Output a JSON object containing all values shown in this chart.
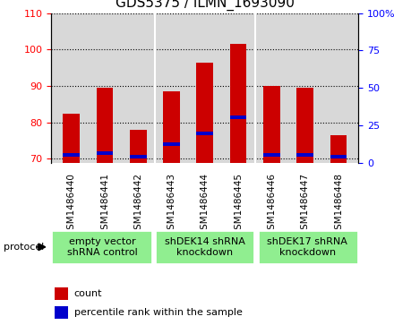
{
  "title": "GDS5375 / ILMN_1693090",
  "samples": [
    "GSM1486440",
    "GSM1486441",
    "GSM1486442",
    "GSM1486443",
    "GSM1486444",
    "GSM1486445",
    "GSM1486446",
    "GSM1486447",
    "GSM1486448"
  ],
  "count_values": [
    82.5,
    89.5,
    78.0,
    88.5,
    96.5,
    101.5,
    90.0,
    89.5,
    76.5
  ],
  "percentile_values": [
    71.0,
    71.5,
    70.5,
    74.0,
    77.0,
    81.5,
    71.0,
    71.0,
    70.5
  ],
  "ylim_left": [
    69,
    110
  ],
  "ylim_right": [
    0,
    100
  ],
  "yticks_left": [
    70,
    80,
    90,
    100,
    110
  ],
  "yticks_right": [
    0,
    25,
    50,
    75,
    100
  ],
  "bar_color": "#cc0000",
  "percentile_color": "#0000cc",
  "grid_color": "#000000",
  "plot_bg_color": "#d8d8d8",
  "sample_bg_color": "#d8d8d8",
  "protocol_color": "#90ee90",
  "protocol_groups": [
    {
      "label": "empty vector\nshRNA control",
      "start": 0,
      "end": 3
    },
    {
      "label": "shDEK14 shRNA\nknockdown",
      "start": 3,
      "end": 6
    },
    {
      "label": "shDEK17 shRNA\nknockdown",
      "start": 6,
      "end": 9
    }
  ],
  "protocol_label": "protocol",
  "legend_count_label": "count",
  "legend_percentile_label": "percentile rank within the sample",
  "title_fontsize": 11,
  "tick_fontsize": 8,
  "sample_fontsize": 7.5,
  "proto_fontsize": 8,
  "legend_fontsize": 8,
  "bar_width": 0.5,
  "group_boundaries": [
    0,
    3,
    6,
    9
  ]
}
